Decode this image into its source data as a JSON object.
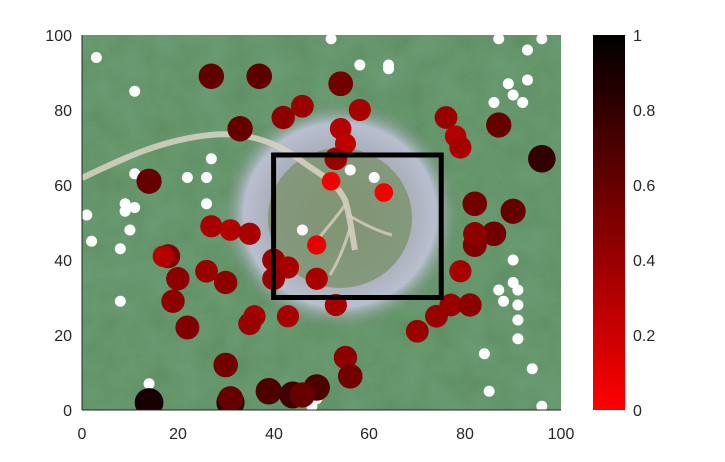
{
  "chart_data": {
    "type": "scatter",
    "title": "",
    "xlabel": "",
    "ylabel": "",
    "xlim": [
      0,
      100
    ],
    "ylim": [
      0,
      100
    ],
    "xticks": [
      "0",
      "20",
      "40",
      "60",
      "80",
      "100"
    ],
    "yticks": [
      "0",
      "20",
      "40",
      "60",
      "80",
      "100"
    ],
    "grid": false,
    "background": "satellite image of a crater with green forested terrain",
    "colorbar": {
      "clim": [
        0,
        1
      ],
      "ticks": [
        "0",
        "0.2",
        "0.4",
        "0.6",
        "0.8",
        "1"
      ],
      "colormap": [
        "#ff0000",
        "#000000"
      ]
    },
    "overlay_box": {
      "x0": 40,
      "x1": 75,
      "y0": 30,
      "y1": 68,
      "color": "#000000"
    },
    "points": [
      {
        "x": 3,
        "y": 94,
        "v": -1
      },
      {
        "x": 11,
        "y": 85,
        "v": -1
      },
      {
        "x": 58,
        "y": 92,
        "v": -1
      },
      {
        "x": 64,
        "y": 92,
        "v": -1
      },
      {
        "x": 64,
        "y": 91,
        "v": -1
      },
      {
        "x": 86,
        "y": 82,
        "v": -1
      },
      {
        "x": 89,
        "y": 87,
        "v": -1
      },
      {
        "x": 90,
        "y": 84,
        "v": -1
      },
      {
        "x": 92,
        "y": 82,
        "v": -1
      },
      {
        "x": 93,
        "y": 88,
        "v": -1
      },
      {
        "x": 93,
        "y": 96,
        "v": -1
      },
      {
        "x": 96,
        "y": 99,
        "v": -1
      },
      {
        "x": 52,
        "y": 99,
        "v": -1
      },
      {
        "x": 87,
        "y": 99,
        "v": -1
      },
      {
        "x": 11,
        "y": 63,
        "v": -1
      },
      {
        "x": 27,
        "y": 67,
        "v": -1
      },
      {
        "x": 22,
        "y": 62,
        "v": -1
      },
      {
        "x": 26,
        "y": 62,
        "v": -1
      },
      {
        "x": 26,
        "y": 55,
        "v": -1
      },
      {
        "x": 56,
        "y": 64,
        "v": -1
      },
      {
        "x": 61,
        "y": 62,
        "v": -1
      },
      {
        "x": 46,
        "y": 48,
        "v": -1
      },
      {
        "x": 9,
        "y": 55,
        "v": -1
      },
      {
        "x": 11,
        "y": 54,
        "v": -1
      },
      {
        "x": 9,
        "y": 53,
        "v": -1
      },
      {
        "x": 1,
        "y": 52,
        "v": -1
      },
      {
        "x": 10,
        "y": 48,
        "v": -1
      },
      {
        "x": 2,
        "y": 45,
        "v": -1
      },
      {
        "x": 8,
        "y": 43,
        "v": -1
      },
      {
        "x": 8,
        "y": 29,
        "v": -1
      },
      {
        "x": 90,
        "y": 40,
        "v": -1
      },
      {
        "x": 90,
        "y": 34,
        "v": -1
      },
      {
        "x": 87,
        "y": 32,
        "v": -1
      },
      {
        "x": 88,
        "y": 29,
        "v": -1
      },
      {
        "x": 91,
        "y": 32,
        "v": -1
      },
      {
        "x": 91,
        "y": 28,
        "v": -1
      },
      {
        "x": 91,
        "y": 24,
        "v": -1
      },
      {
        "x": 91,
        "y": 19,
        "v": -1
      },
      {
        "x": 84,
        "y": 15,
        "v": -1
      },
      {
        "x": 94,
        "y": 11,
        "v": -1
      },
      {
        "x": 85,
        "y": 5,
        "v": -1
      },
      {
        "x": 96,
        "y": 1,
        "v": -1
      },
      {
        "x": 49,
        "y": 3,
        "v": -1
      },
      {
        "x": 48,
        "y": 1,
        "v": -1
      },
      {
        "x": 14,
        "y": 7,
        "v": -1
      },
      {
        "x": 27,
        "y": 89,
        "v": 0.62
      },
      {
        "x": 37,
        "y": 89,
        "v": 0.63
      },
      {
        "x": 54,
        "y": 87,
        "v": 0.55
      },
      {
        "x": 46,
        "y": 81,
        "v": 0.4
      },
      {
        "x": 42,
        "y": 78,
        "v": 0.45
      },
      {
        "x": 58,
        "y": 80,
        "v": 0.35
      },
      {
        "x": 33,
        "y": 75,
        "v": 0.6
      },
      {
        "x": 54,
        "y": 75,
        "v": 0.3
      },
      {
        "x": 55,
        "y": 71,
        "v": 0.25
      },
      {
        "x": 76,
        "y": 78,
        "v": 0.4
      },
      {
        "x": 78,
        "y": 73,
        "v": 0.3
      },
      {
        "x": 79,
        "y": 70,
        "v": 0.35
      },
      {
        "x": 87,
        "y": 76,
        "v": 0.6
      },
      {
        "x": 53,
        "y": 67,
        "v": 0.4
      },
      {
        "x": 52,
        "y": 61,
        "v": 0.05
      },
      {
        "x": 63,
        "y": 58,
        "v": 0.05
      },
      {
        "x": 14,
        "y": 61,
        "v": 0.6
      },
      {
        "x": 96,
        "y": 67,
        "v": 0.8
      },
      {
        "x": 82,
        "y": 55,
        "v": 0.55
      },
      {
        "x": 90,
        "y": 53,
        "v": 0.6
      },
      {
        "x": 27,
        "y": 49,
        "v": 0.35
      },
      {
        "x": 31,
        "y": 48,
        "v": 0.3
      },
      {
        "x": 35,
        "y": 47,
        "v": 0.35
      },
      {
        "x": 49,
        "y": 44,
        "v": 0.1
      },
      {
        "x": 82,
        "y": 44,
        "v": 0.5
      },
      {
        "x": 86,
        "y": 47,
        "v": 0.55
      },
      {
        "x": 18,
        "y": 41,
        "v": 0.5
      },
      {
        "x": 40,
        "y": 40,
        "v": 0.4
      },
      {
        "x": 43,
        "y": 38,
        "v": 0.35
      },
      {
        "x": 40,
        "y": 35,
        "v": 0.4
      },
      {
        "x": 49,
        "y": 35,
        "v": 0.35
      },
      {
        "x": 79,
        "y": 37,
        "v": 0.35
      },
      {
        "x": 20,
        "y": 35,
        "v": 0.45
      },
      {
        "x": 26,
        "y": 37,
        "v": 0.4
      },
      {
        "x": 30,
        "y": 34,
        "v": 0.45
      },
      {
        "x": 53,
        "y": 28,
        "v": 0.35
      },
      {
        "x": 19,
        "y": 29,
        "v": 0.45
      },
      {
        "x": 77,
        "y": 28,
        "v": 0.4
      },
      {
        "x": 81,
        "y": 28,
        "v": 0.45
      },
      {
        "x": 36,
        "y": 25,
        "v": 0.35
      },
      {
        "x": 43,
        "y": 25,
        "v": 0.35
      },
      {
        "x": 35,
        "y": 23,
        "v": 0.4
      },
      {
        "x": 74,
        "y": 25,
        "v": 0.4
      },
      {
        "x": 22,
        "y": 22,
        "v": 0.5
      },
      {
        "x": 70,
        "y": 21,
        "v": 0.4
      },
      {
        "x": 55,
        "y": 14,
        "v": 0.45
      },
      {
        "x": 30,
        "y": 12,
        "v": 0.55
      },
      {
        "x": 56,
        "y": 9,
        "v": 0.55
      },
      {
        "x": 39,
        "y": 5,
        "v": 0.7
      },
      {
        "x": 44,
        "y": 4,
        "v": 0.75
      },
      {
        "x": 49,
        "y": 6,
        "v": 0.7
      },
      {
        "x": 46,
        "y": 4,
        "v": 0.6
      },
      {
        "x": 14,
        "y": 2,
        "v": 0.9
      },
      {
        "x": 31,
        "y": 2,
        "v": 0.85
      },
      {
        "x": 54,
        "y": 87,
        "v": 0.55
      },
      {
        "x": 33,
        "y": 75,
        "v": 0.6
      },
      {
        "x": 82,
        "y": 47,
        "v": 0.45
      },
      {
        "x": 17,
        "y": 41,
        "v": 0.3
      },
      {
        "x": 31,
        "y": 3,
        "v": 0.6
      }
    ]
  }
}
